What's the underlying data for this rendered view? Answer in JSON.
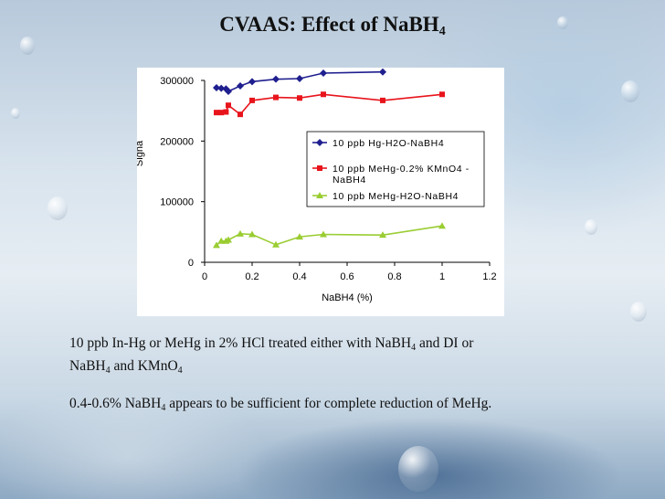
{
  "slide": {
    "title_main": "CVAAS: Effect of NaBH",
    "title_sub": "4",
    "paragraph1": {
      "part1": "10 ppb In-Hg or MeHg in 2% HCl treated either with NaBH",
      "sub1": "4",
      "part2": " and DI or",
      "part3": "NaBH",
      "sub2": "4",
      "part4": " and KMnO",
      "sub3": "4"
    },
    "paragraph2": {
      "part1": "0.4-0.6% NaBH",
      "sub1": "4",
      "part2": " appears to be sufficient for complete reduction of MeHg."
    }
  },
  "chart_data": {
    "type": "line",
    "title": "",
    "xlabel": "NaBH4 (%)",
    "ylabel": "Signal",
    "ylabel_visible": "Signa",
    "xlim": [
      0,
      1.2
    ],
    "ylim": [
      0,
      300000
    ],
    "x_ticks": [
      "0",
      "0.2",
      "0.4",
      "0.6",
      "0.8",
      "1",
      "1.2"
    ],
    "y_ticks": [
      "0",
      "100000",
      "200000",
      "300000"
    ],
    "legend_position": "top-right",
    "series": [
      {
        "name": "10 ppb Hg-H2O-NaBH4",
        "color": "#1f1f8f",
        "marker": "diamond",
        "x": [
          0.05,
          0.07,
          0.09,
          0.1,
          0.15,
          0.2,
          0.3,
          0.4,
          0.5,
          0.75
        ],
        "y": [
          288000,
          287000,
          286000,
          282000,
          291000,
          298000,
          302000,
          303000,
          312000,
          314000
        ]
      },
      {
        "name": "10 ppb MeHg-0.2% KMnO4 -NaBH4",
        "legend_lines": [
          "10 ppb MeHg-0.2% KMnO4 -",
          "NaBH4"
        ],
        "color": "#e8141c",
        "marker": "square",
        "x": [
          0.05,
          0.07,
          0.09,
          0.1,
          0.15,
          0.2,
          0.3,
          0.4,
          0.5,
          0.75,
          1.0
        ],
        "y": [
          247000,
          247000,
          248000,
          259000,
          244000,
          267000,
          272000,
          271000,
          277000,
          267000,
          277000
        ]
      },
      {
        "name": "10 ppb MeHg-H2O-NaBH4",
        "color": "#9acd32",
        "marker": "triangle",
        "x": [
          0.05,
          0.07,
          0.09,
          0.1,
          0.15,
          0.2,
          0.3,
          0.4,
          0.5,
          0.75,
          1.0
        ],
        "y": [
          28000,
          35000,
          35000,
          37000,
          47000,
          46000,
          29000,
          42000,
          46000,
          45000,
          60000
        ]
      }
    ]
  }
}
